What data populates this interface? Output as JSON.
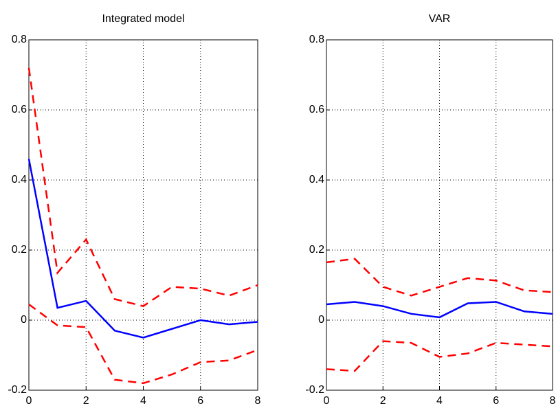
{
  "chart_data": [
    {
      "type": "line",
      "title": "Integrated model",
      "x": [
        0,
        1,
        2,
        3,
        4,
        5,
        6,
        7,
        8
      ],
      "xlim": [
        0,
        8
      ],
      "xticks": [
        0,
        2,
        4,
        6,
        8
      ],
      "ylim": [
        -0.2,
        0.8
      ],
      "yticks": [
        -0.2,
        0,
        0.2,
        0.4,
        0.6,
        0.8
      ],
      "grid": true,
      "series": [
        {
          "color": "#0000ff",
          "style": "solid",
          "values": [
            0.46,
            0.035,
            0.055,
            -0.03,
            -0.05,
            -0.025,
            0.0,
            -0.012,
            -0.005
          ]
        },
        {
          "color": "#ff0000",
          "style": "dashed",
          "values": [
            0.72,
            0.135,
            0.23,
            0.06,
            0.04,
            0.095,
            0.09,
            0.07,
            0.1
          ]
        },
        {
          "color": "#ff0000",
          "style": "dashed",
          "values": [
            0.045,
            -0.015,
            -0.02,
            -0.17,
            -0.18,
            -0.155,
            -0.12,
            -0.115,
            -0.085
          ]
        }
      ]
    },
    {
      "type": "line",
      "title": "VAR",
      "x": [
        0,
        1,
        2,
        3,
        4,
        5,
        6,
        7,
        8
      ],
      "xlim": [
        0,
        8
      ],
      "xticks": [
        0,
        2,
        4,
        6,
        8
      ],
      "ylim": [
        -0.2,
        0.8
      ],
      "yticks": [
        -0.2,
        0,
        0.2,
        0.4,
        0.6,
        0.8
      ],
      "grid": true,
      "series": [
        {
          "color": "#0000ff",
          "style": "solid",
          "values": [
            0.045,
            0.052,
            0.04,
            0.018,
            0.008,
            0.048,
            0.052,
            0.025,
            0.018
          ]
        },
        {
          "color": "#ff0000",
          "style": "dashed",
          "values": [
            0.165,
            0.175,
            0.095,
            0.07,
            0.095,
            0.12,
            0.113,
            0.085,
            0.08
          ]
        },
        {
          "color": "#ff0000",
          "style": "dashed",
          "values": [
            -0.14,
            -0.145,
            -0.06,
            -0.065,
            -0.105,
            -0.095,
            -0.065,
            -0.07,
            -0.075
          ]
        }
      ]
    }
  ]
}
